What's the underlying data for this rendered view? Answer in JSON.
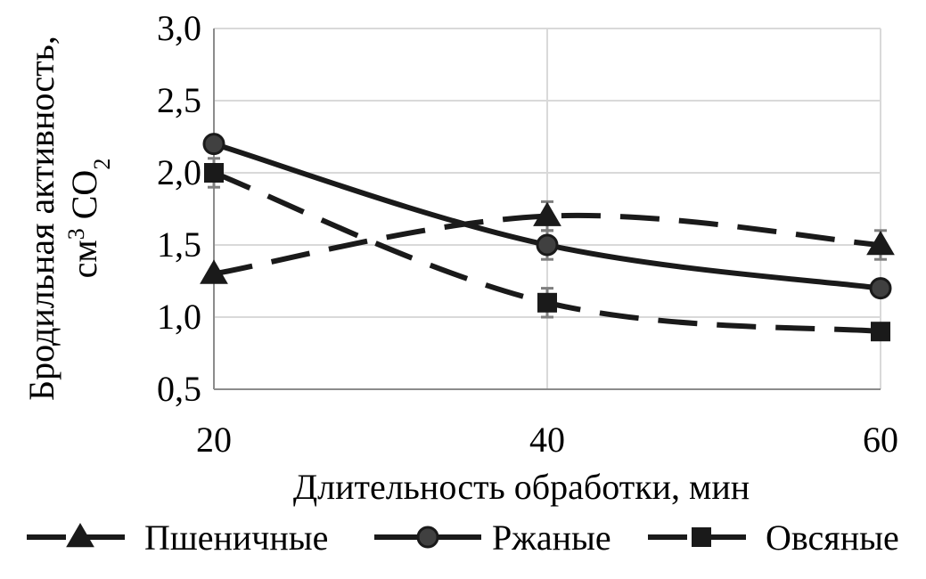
{
  "chart_data": {
    "type": "line",
    "x": [
      20,
      40,
      60
    ],
    "xlim": [
      20,
      60
    ],
    "ylim": [
      0.5,
      3.0
    ],
    "x_ticks": [
      "20",
      "40",
      "60"
    ],
    "y_ticks": [
      "0,5",
      "1,0",
      "1,5",
      "2,0",
      "2,5",
      "3,0"
    ],
    "xlabel": "Длительность обработки, мин",
    "ylabel": {
      "line1": "Бродильная активность,",
      "line2_prefix": "см",
      "line2_sup": "3",
      "line2_mid": " CO",
      "line2_sub": "2"
    },
    "grid": true,
    "legend_position": "bottom",
    "series": [
      {
        "name": "Пшеничные",
        "marker": "triangle",
        "line_style": "dashed",
        "color": "#1a1a1a",
        "values": [
          1.3,
          1.7,
          1.5
        ],
        "error": [
          0.0,
          0.1,
          0.1
        ]
      },
      {
        "name": "Ржаные",
        "marker": "circle",
        "line_style": "solid",
        "color": "#1a1a1a",
        "values": [
          2.2,
          1.5,
          1.2
        ],
        "error": [
          0.0,
          0.1,
          0.0
        ]
      },
      {
        "name": "Овсяные",
        "marker": "square",
        "line_style": "dashed",
        "color": "#1a1a1a",
        "values": [
          2.0,
          1.1,
          0.9
        ],
        "error": [
          0.1,
          0.1,
          0.0
        ]
      }
    ]
  }
}
